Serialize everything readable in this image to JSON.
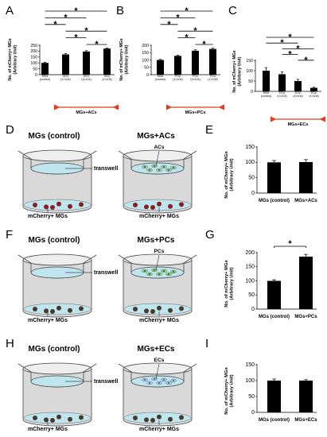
{
  "figure": {
    "panel_labels": [
      "A",
      "B",
      "C",
      "D",
      "E",
      "F",
      "G",
      "H",
      "I"
    ],
    "rows": [
      {
        "left_title": "MGs (control)",
        "right_title": "MGs+ACs",
        "cell_label": "ACs",
        "transwell_label": "transwell",
        "bottom_left": "mCherry+ MGs",
        "bottom_right": "mCherry+ MGs",
        "cell_color": "#9acfa2",
        "nucleus_color": "#2a2a2a",
        "mg_color": "#8b1f1f"
      },
      {
        "left_title": "MGs (control)",
        "right_title": "MGs+PCs",
        "cell_label": "PCs",
        "transwell_label": "transwell",
        "bottom_left": "mCherry+ MGs",
        "bottom_right": "mCherry+ MGs",
        "cell_color": "#8bd17d",
        "nucleus_color": "#2a2a2a",
        "mg_color": "#4a3a2a"
      },
      {
        "left_title": "MGs (control)",
        "right_title": "MGs+ECs",
        "cell_label": "ECs",
        "transwell_label": "transwell",
        "bottom_left": "mCherry+ MGs",
        "bottom_right": "mCherry+ MGs",
        "cell_color": "#a9c8ec",
        "nucleus_color": "#1b3a8a",
        "mg_color": "#4a3a2a"
      }
    ],
    "significance_marker": "*"
  },
  "chart_data": [
    {
      "panel": "A",
      "type": "bar",
      "ylabel": [
        "No. of mCherry+ MGs",
        "(Arbitrary Unit)"
      ],
      "ylim": [
        0,
        250
      ],
      "yticks": [
        0,
        50,
        100,
        150,
        200,
        250
      ],
      "categories": [
        [
          "MGs",
          "(control)"
        ],
        [
          "ACs",
          "(1×104)"
        ],
        [
          "ACs",
          "(3×104)"
        ],
        [
          "ACs",
          "(1×105)"
        ]
      ],
      "values": [
        100,
        172,
        197,
        222
      ],
      "errors": [
        6,
        7,
        7,
        5
      ],
      "group_label": "MGs+ACs",
      "significance": [
        [
          0,
          3
        ],
        [
          0,
          2
        ],
        [
          0,
          1
        ],
        [
          1,
          3
        ],
        [
          1,
          2
        ],
        [
          2,
          3
        ]
      ]
    },
    {
      "panel": "B",
      "type": "bar",
      "ylabel": [
        "No. of mCherry+ MGs",
        "(Arbitrary Unit)"
      ],
      "ylim": [
        0,
        200
      ],
      "yticks": [
        0,
        50,
        100,
        150,
        200
      ],
      "categories": [
        [
          "MGs",
          "(control)"
        ],
        [
          "PCs",
          "(1×104)"
        ],
        [
          "PCs",
          "(3×104)"
        ],
        [
          "PCs",
          "(1×105)"
        ]
      ],
      "values": [
        100,
        128,
        163,
        175
      ],
      "errors": [
        4,
        4,
        6,
        5
      ],
      "group_label": "MGs+PCs",
      "significance": [
        [
          0,
          3
        ],
        [
          0,
          2
        ],
        [
          0,
          1
        ],
        [
          1,
          3
        ],
        [
          1,
          2
        ],
        [
          2,
          3
        ]
      ]
    },
    {
      "panel": "C",
      "type": "bar",
      "ylabel": [
        "No. of mCherry+ MGs",
        "(Arbitrary Unit)"
      ],
      "ylim": [
        0,
        150
      ],
      "yticks": [
        0,
        50,
        100,
        150
      ],
      "categories": [
        [
          "MGs",
          "(control)"
        ],
        [
          "ECs",
          "(1×104)"
        ],
        [
          "ECs",
          "(3×104)"
        ],
        [
          "ECs",
          "(1×105)"
        ]
      ],
      "values": [
        100,
        83,
        50,
        17
      ],
      "errors": [
        15,
        12,
        8,
        3
      ],
      "group_label": "MGs+ECs",
      "significance": [
        [
          0,
          3
        ],
        [
          0,
          2
        ],
        [
          1,
          3
        ],
        [
          1,
          2
        ],
        [
          2,
          3
        ]
      ]
    },
    {
      "panel": "E",
      "type": "bar",
      "ylabel": [
        "No. of mCherry+ MGs",
        "(Arbitrary Unit)"
      ],
      "ylim": [
        0,
        150
      ],
      "yticks": [
        0,
        50,
        100,
        150
      ],
      "categories": [
        [
          "MGs (control)"
        ],
        [
          "MGs+ACs"
        ]
      ],
      "values": [
        100,
        101
      ],
      "errors": [
        6,
        8
      ],
      "significance": []
    },
    {
      "panel": "G",
      "type": "bar",
      "ylabel": [
        "No. of mCherry+ MGs",
        "(Arbitrary Unit)"
      ],
      "ylim": [
        0,
        200
      ],
      "yticks": [
        0,
        50,
        100,
        150,
        200
      ],
      "categories": [
        [
          "MGs (control)"
        ],
        [
          "MGs+PCs"
        ]
      ],
      "values": [
        100,
        186
      ],
      "errors": [
        4,
        8
      ],
      "significance": [
        [
          0,
          1
        ]
      ]
    },
    {
      "panel": "I",
      "type": "bar",
      "ylabel": [
        "No. of mCherry+ MGs",
        "(Arbitrary Unit)"
      ],
      "ylim": [
        0,
        150
      ],
      "yticks": [
        0,
        50,
        100,
        150
      ],
      "categories": [
        [
          "MGs (control)"
        ],
        [
          "MGs+ECs"
        ]
      ],
      "values": [
        100,
        100
      ],
      "errors": [
        5,
        3
      ],
      "significance": []
    }
  ]
}
